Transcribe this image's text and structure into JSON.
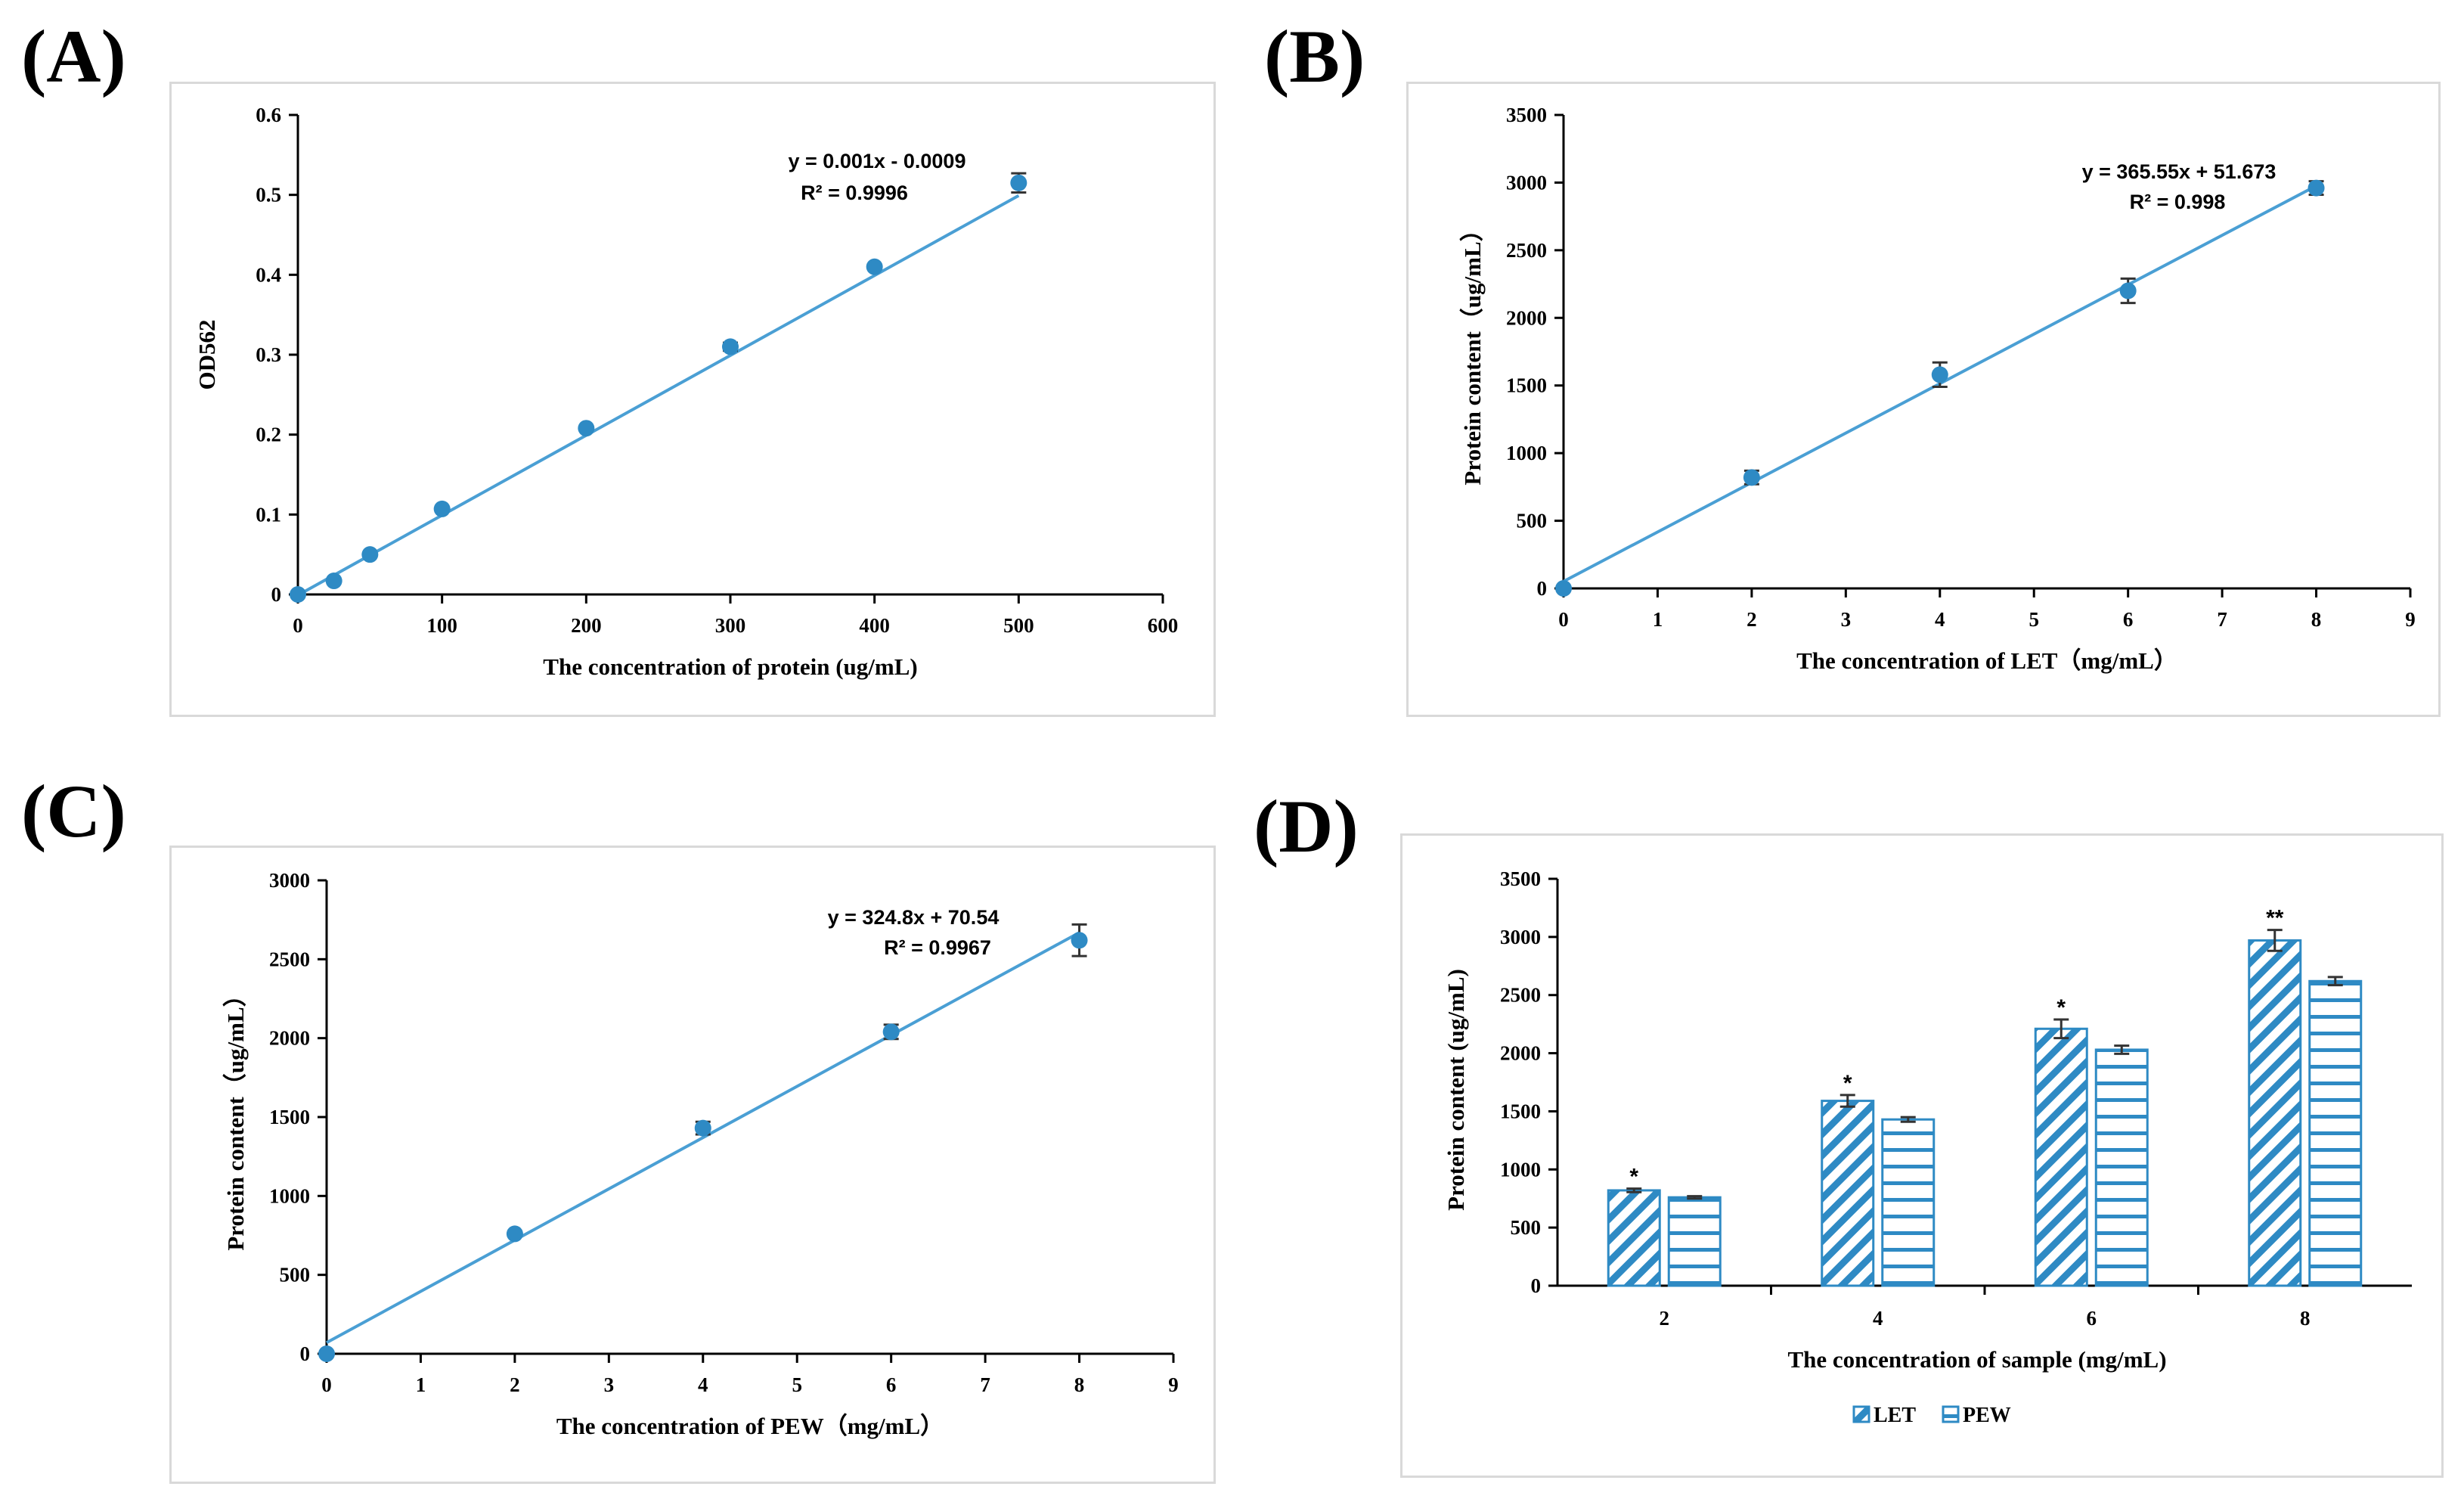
{
  "panel_labels": [
    "(A)",
    "(B)",
    "(C)",
    "(D)"
  ],
  "colors": {
    "series": "#2e8ac4",
    "line": "#4a9fd4",
    "error": "#333333",
    "axis": "#000000"
  },
  "chart_data": [
    {
      "id": "A",
      "type": "scatter",
      "xlabel": "The concentration of protein (ug/mL)",
      "ylabel": "OD562",
      "xlim": [
        0,
        600
      ],
      "ylim": [
        0,
        0.6
      ],
      "xticks": [
        0,
        100,
        200,
        300,
        400,
        500,
        600
      ],
      "yticks": [
        0,
        0.1,
        0.2,
        0.3,
        0.4,
        0.5,
        0.6
      ],
      "x": [
        0,
        25,
        50,
        100,
        200,
        300,
        400,
        500
      ],
      "y": [
        0,
        0.017,
        0.05,
        0.107,
        0.208,
        0.31,
        0.41,
        0.515
      ],
      "err": [
        0,
        0,
        0,
        0,
        0,
        0.005,
        0,
        0.012
      ],
      "fit": {
        "slope": 0.001,
        "intercept": -0.0009,
        "x_range": [
          0,
          500
        ]
      },
      "equation": "y = 0.001x - 0.0009",
      "r2": "R² = 0.9996"
    },
    {
      "id": "B",
      "type": "scatter",
      "xlabel": "The concentration of LET（mg/mL）",
      "ylabel": "Protein content（ug/mL）",
      "xlim": [
        0,
        9
      ],
      "ylim": [
        0,
        3500
      ],
      "xticks": [
        0,
        1,
        2,
        3,
        4,
        5,
        6,
        7,
        8,
        9
      ],
      "yticks": [
        0,
        500,
        1000,
        1500,
        2000,
        2500,
        3000,
        3500
      ],
      "x": [
        0,
        2,
        4,
        6,
        8
      ],
      "y": [
        0,
        820,
        1580,
        2200,
        2960
      ],
      "err": [
        0,
        50,
        90,
        90,
        50
      ],
      "fit": {
        "slope": 365.55,
        "intercept": 51.673,
        "x_range": [
          0,
          8
        ]
      },
      "equation": "y = 365.55x + 51.673",
      "r2": "R² = 0.998"
    },
    {
      "id": "C",
      "type": "scatter",
      "xlabel": "The concentration of PEW（mg/mL）",
      "ylabel": "Protein content（ug/mL）",
      "xlim": [
        0,
        9
      ],
      "ylim": [
        0,
        3000
      ],
      "xticks": [
        0,
        1,
        2,
        3,
        4,
        5,
        6,
        7,
        8,
        9
      ],
      "yticks": [
        0,
        500,
        1000,
        1500,
        2000,
        2500,
        3000
      ],
      "x": [
        0,
        2,
        4,
        6,
        8
      ],
      "y": [
        0,
        760,
        1430,
        2040,
        2620
      ],
      "err": [
        0,
        15,
        40,
        45,
        100
      ],
      "fit": {
        "slope": 324.8,
        "intercept": 70.54,
        "x_range": [
          0,
          8
        ]
      },
      "equation": "y = 324.8x + 70.54",
      "r2": "R² = 0.9967"
    },
    {
      "id": "D",
      "type": "bar",
      "xlabel": "The concentration of sample (mg/mL)",
      "ylabel": "Protein content (ug/mL)",
      "ylim": [
        0,
        3500
      ],
      "yticks": [
        0,
        500,
        1000,
        1500,
        2000,
        2500,
        3000,
        3500
      ],
      "categories": [
        "2",
        "4",
        "6",
        "8"
      ],
      "series": [
        {
          "name": "LET",
          "values": [
            820,
            1590,
            2210,
            2970
          ],
          "err": [
            15,
            50,
            80,
            90
          ],
          "pattern": "diagonal"
        },
        {
          "name": "PEW",
          "values": [
            760,
            1430,
            2030,
            2620
          ],
          "err": [
            10,
            20,
            35,
            35
          ],
          "pattern": "horizontal"
        }
      ],
      "annotations": [
        "*",
        "*",
        "*",
        "**"
      ],
      "legend_position": "bottom"
    }
  ]
}
